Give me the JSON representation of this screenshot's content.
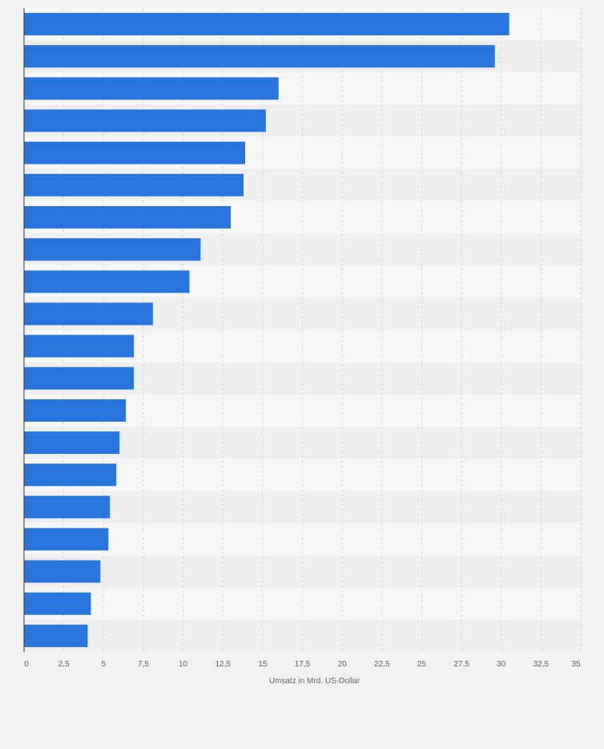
{
  "chart_data": {
    "type": "bar",
    "orientation": "horizontal",
    "xlabel": "Umsatz in Mrd. US-Dollar",
    "xlim": [
      0,
      35
    ],
    "x_ticks": [
      "0",
      "2,5",
      "5",
      "7,5",
      "10",
      "12,5",
      "15",
      "17,5",
      "20",
      "22,5",
      "25",
      "27,5",
      "30",
      "32,5",
      "35"
    ],
    "x_tick_values": [
      0,
      2.5,
      5,
      7.5,
      10,
      12.5,
      15,
      17.5,
      20,
      22.5,
      25,
      27.5,
      30,
      32.5,
      35
    ],
    "values": [
      30.5,
      29.6,
      16.0,
      15.2,
      13.9,
      13.8,
      13.0,
      11.1,
      10.4,
      8.1,
      6.9,
      6.9,
      6.4,
      6.0,
      5.8,
      5.4,
      5.3,
      4.8,
      4.2,
      4.0
    ],
    "grid": true,
    "legend": "none",
    "colors": {
      "bar": "#2876dd",
      "band_light": "#f7f7f7",
      "band_dark": "#efefef",
      "grid": "#d6d6d6",
      "axis": "#333333",
      "tick_text": "#666666",
      "background": "#f2f2f2"
    }
  }
}
